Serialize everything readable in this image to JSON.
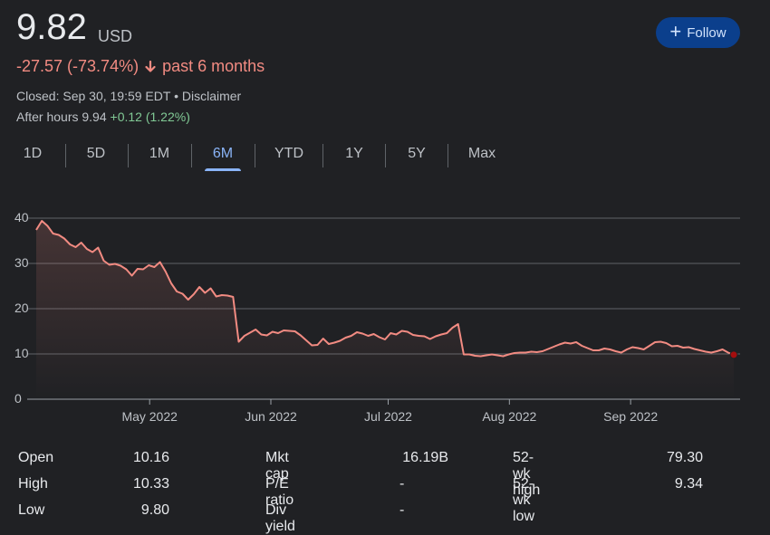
{
  "price": {
    "value": "9.82",
    "currency": "USD"
  },
  "follow_button": {
    "label": "Follow",
    "icon": "plus-icon"
  },
  "change": {
    "amount": "-27.57",
    "percent": "(-73.74%)",
    "period": "past 6 months",
    "icon": "arrow-down-icon",
    "color": "#f28b82"
  },
  "status": {
    "closed": "Closed: Sep 30, 19:59 EDT",
    "separator": "•",
    "disclaimer": "Disclaimer"
  },
  "after_hours": {
    "label": "After hours",
    "price": "9.94",
    "change": "+0.12 (1.22%)",
    "color": "#81c995"
  },
  "tabs": [
    "1D",
    "5D",
    "1M",
    "6M",
    "YTD",
    "1Y",
    "5Y",
    "Max"
  ],
  "active_tab": "6M",
  "chart_data": {
    "type": "area",
    "yticks": [
      "0",
      "10",
      "20",
      "30",
      "40"
    ],
    "ylim": [
      0,
      40
    ],
    "xticks": [
      {
        "label": "May 2022",
        "t": 18
      },
      {
        "label": "Jun 2022",
        "t": 49
      },
      {
        "label": "Jul 2022",
        "t": 79
      },
      {
        "label": "Aug 2022",
        "t": 110
      },
      {
        "label": "Sep 2022",
        "t": 141
      }
    ],
    "xlim": [
      -11,
      169
    ],
    "values": [
      37.4,
      39.4,
      38.3,
      36.6,
      36.3,
      35.5,
      34.2,
      33.6,
      34.6,
      33.2,
      32.5,
      33.5,
      30.6,
      29.7,
      29.9,
      29.5,
      28.7,
      27.3,
      28.8,
      28.7,
      29.6,
      29.2,
      30.3,
      28.2,
      25.6,
      23.8,
      23.3,
      22.0,
      23.2,
      24.8,
      23.5,
      24.5,
      22.7,
      23.0,
      22.9,
      22.6,
      12.7,
      14.0,
      14.7,
      15.4,
      14.3,
      14.1,
      14.9,
      14.6,
      15.2,
      15.1,
      15.0,
      14.1,
      13.0,
      11.9,
      12.0,
      13.4,
      12.2,
      12.5,
      12.9,
      13.6,
      14.0,
      14.8,
      14.5,
      14.0,
      14.4,
      13.7,
      13.2,
      14.6,
      14.3,
      15.1,
      14.9,
      14.2,
      14.0,
      13.9,
      13.3,
      13.9,
      14.3,
      14.6,
      15.8,
      16.6,
      9.9,
      9.9,
      9.6,
      9.5,
      9.7,
      9.9,
      9.7,
      9.5,
      9.9,
      10.2,
      10.3,
      10.3,
      10.5,
      10.4,
      10.6,
      11.1,
      11.6,
      12.1,
      12.5,
      12.3,
      12.6,
      11.8,
      11.3,
      10.8,
      10.8,
      11.2,
      11.0,
      10.6,
      10.3,
      11.0,
      11.5,
      11.3,
      11.0,
      11.8,
      12.6,
      12.7,
      12.4,
      11.7,
      11.8,
      11.4,
      11.5,
      11.1,
      10.8,
      10.5,
      10.3,
      10.6,
      11.0,
      10.3,
      9.82
    ],
    "line_color": "#f28b82",
    "grid": true
  },
  "stats": [
    {
      "label": "Open",
      "value": "10.16"
    },
    {
      "label": "High",
      "value": "10.33"
    },
    {
      "label": "Low",
      "value": "9.80"
    },
    {
      "label": "Mkt cap",
      "value": "16.19B"
    },
    {
      "label": "P/E ratio",
      "value": "-"
    },
    {
      "label": "Div yield",
      "value": "-"
    },
    {
      "label": "52-wk high",
      "value": "79.30"
    },
    {
      "label": "52-wk low",
      "value": "9.34"
    }
  ]
}
